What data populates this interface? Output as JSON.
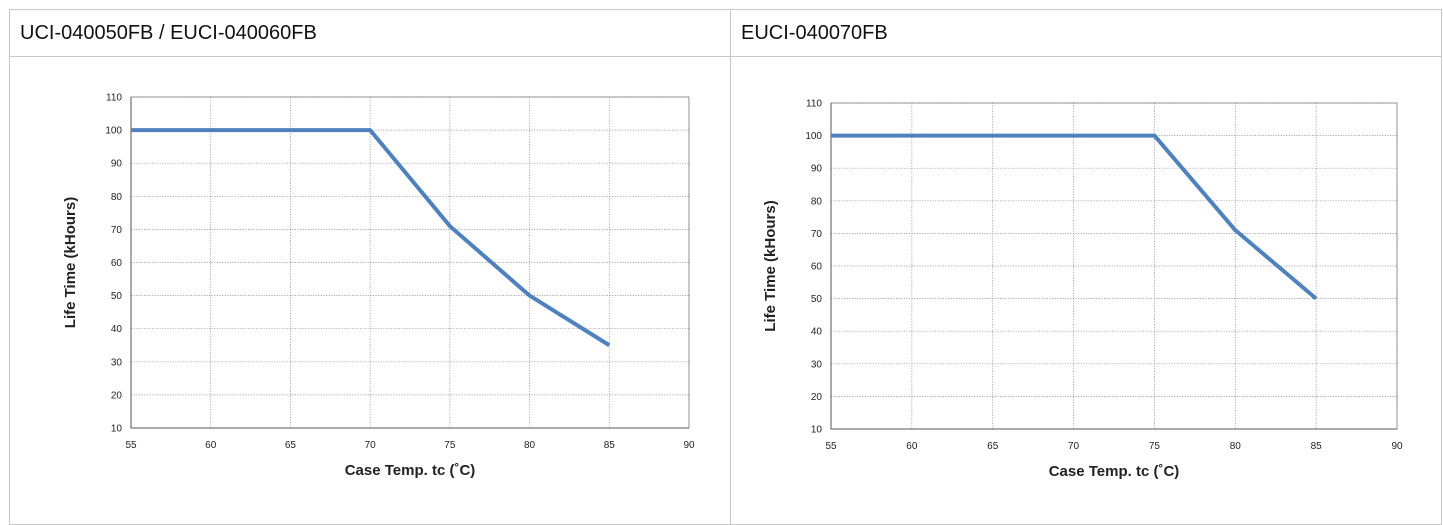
{
  "panels": [
    {
      "title": "UCI-040050FB / EUCI-040060FB"
    },
    {
      "title": "EUCI-040070FB"
    }
  ],
  "chart_data": [
    {
      "type": "line",
      "xlabel": "Case Temp. tc (˚C)",
      "ylabel": "Life Time (kHours)",
      "xlim": [
        55,
        90
      ],
      "ylim": [
        10,
        110
      ],
      "xticks": [
        55,
        60,
        65,
        70,
        75,
        80,
        85,
        90
      ],
      "yticks": [
        10,
        20,
        30,
        40,
        50,
        60,
        70,
        80,
        90,
        100,
        110
      ],
      "grid": true,
      "series": [
        {
          "x": [
            55,
            70,
            75,
            80,
            85
          ],
          "y": [
            100,
            100,
            71,
            50,
            35
          ],
          "color": "#4f81bd"
        }
      ]
    },
    {
      "type": "line",
      "xlabel": "Case Temp. tc (˚C)",
      "ylabel": "Life Time (kHours)",
      "xlim": [
        55,
        90
      ],
      "ylim": [
        10,
        110
      ],
      "xticks": [
        55,
        60,
        65,
        70,
        75,
        80,
        85,
        90
      ],
      "yticks": [
        10,
        20,
        30,
        40,
        50,
        60,
        70,
        80,
        90,
        100,
        110
      ],
      "grid": true,
      "series": [
        {
          "x": [
            55,
            75,
            80,
            85
          ],
          "y": [
            100,
            100,
            71,
            50
          ],
          "color": "#4f81bd"
        }
      ]
    }
  ]
}
